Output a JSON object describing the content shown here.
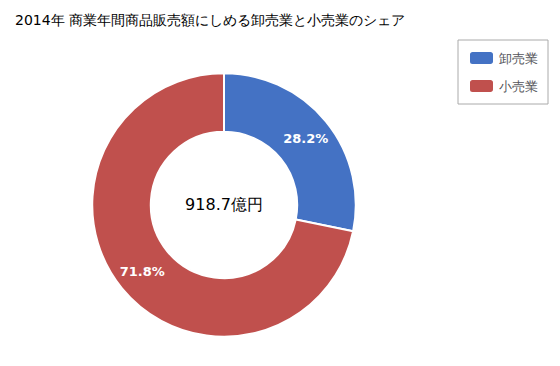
{
  "chart_data": {
    "type": "donut",
    "title": "2014年 商業年間商品販売額にしめる卸売業と小売業のシェア",
    "categories": [
      "卸売業",
      "小売業"
    ],
    "values": [
      28.2,
      71.8
    ],
    "value_labels": [
      "28.2%",
      "71.8%"
    ],
    "colors": [
      "#4472C4",
      "#C0504D"
    ],
    "annotations": [
      "918.7億円"
    ],
    "data_labels": true,
    "legend": "upper right"
  }
}
